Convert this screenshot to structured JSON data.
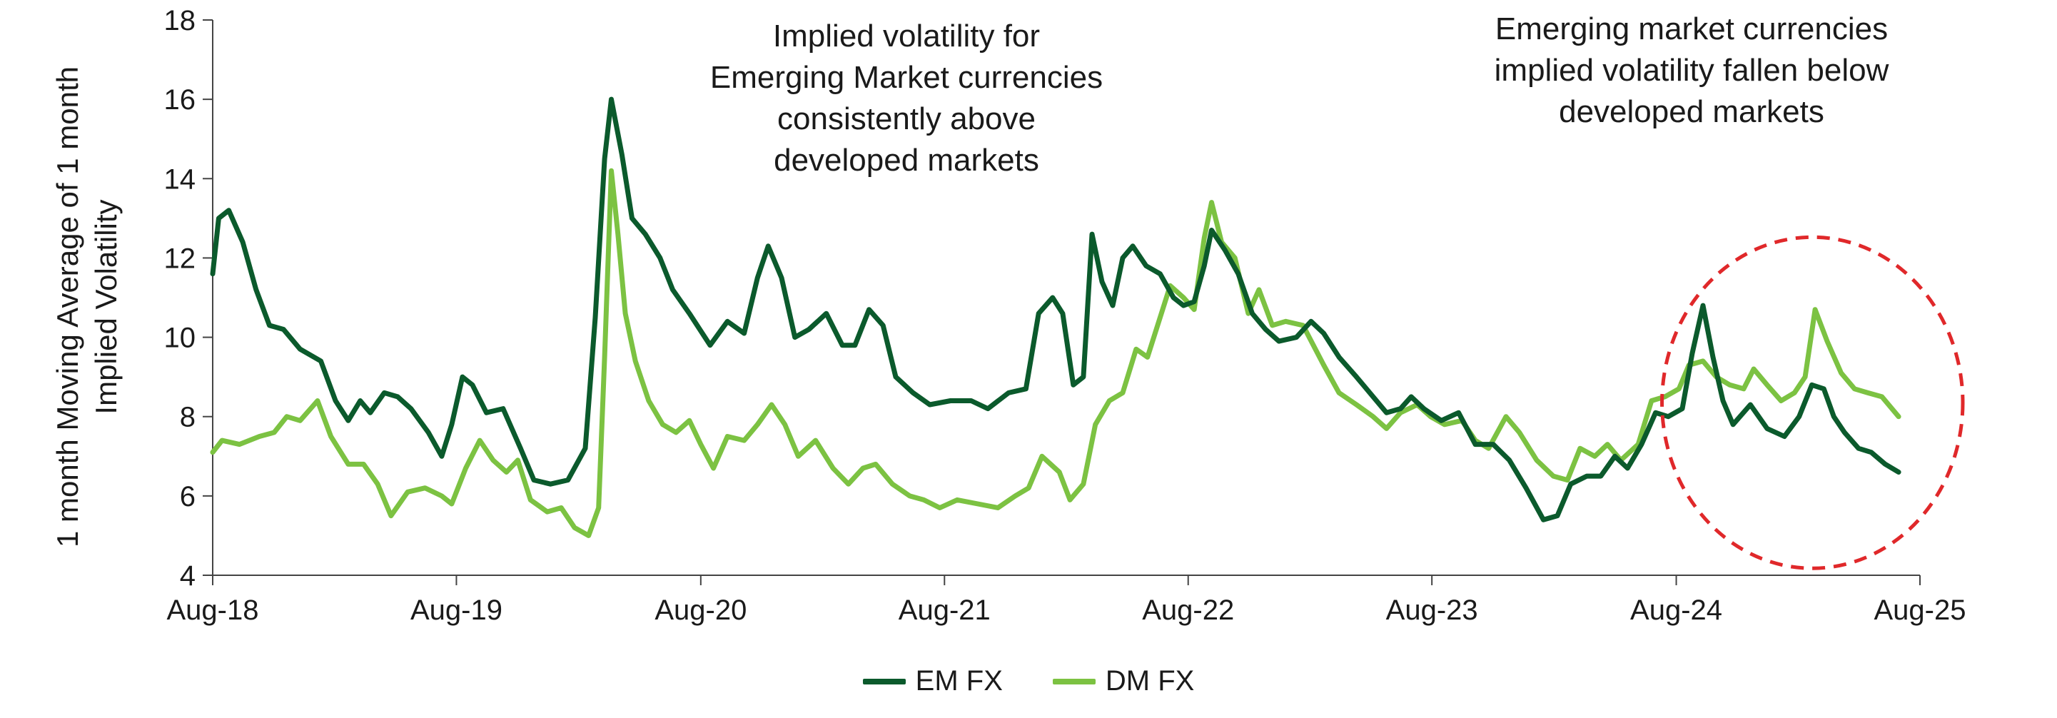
{
  "chart_data": {
    "type": "line",
    "title": "",
    "ylabel": "1 month Moving Average of 1 month\nImplied Volatility",
    "xlabel": "",
    "ylim": [
      4,
      18
    ],
    "yticks": [
      "4",
      "6",
      "8",
      "10",
      "12",
      "14",
      "16",
      "18"
    ],
    "xlim": [
      "2018-08-01",
      "2025-08-01"
    ],
    "xtick_labels": [
      "Aug-18",
      "Aug-19",
      "Aug-20",
      "Aug-21",
      "Aug-22",
      "Aug-23",
      "Aug-24",
      "Aug-25"
    ],
    "grid": false,
    "legend_position": "bottom",
    "series": [
      {
        "name": "EM FX",
        "color": "#0b5a2c",
        "points": [
          [
            "2018-08-01",
            11.6
          ],
          [
            "2018-08-10",
            13.0
          ],
          [
            "2018-08-25",
            13.2
          ],
          [
            "2018-09-15",
            12.4
          ],
          [
            "2018-10-05",
            11.2
          ],
          [
            "2018-10-25",
            10.3
          ],
          [
            "2018-11-15",
            10.2
          ],
          [
            "2018-12-10",
            9.7
          ],
          [
            "2019-01-10",
            9.4
          ],
          [
            "2019-02-01",
            8.4
          ],
          [
            "2019-02-20",
            7.9
          ],
          [
            "2019-03-10",
            8.4
          ],
          [
            "2019-03-25",
            8.1
          ],
          [
            "2019-04-15",
            8.6
          ],
          [
            "2019-05-05",
            8.5
          ],
          [
            "2019-05-25",
            8.2
          ],
          [
            "2019-06-20",
            7.6
          ],
          [
            "2019-07-10",
            7.0
          ],
          [
            "2019-07-25",
            7.8
          ],
          [
            "2019-08-10",
            9.0
          ],
          [
            "2019-08-25",
            8.8
          ],
          [
            "2019-09-15",
            8.1
          ],
          [
            "2019-10-10",
            8.2
          ],
          [
            "2019-11-05",
            7.2
          ],
          [
            "2019-11-25",
            6.4
          ],
          [
            "2019-12-20",
            6.3
          ],
          [
            "2020-01-15",
            6.4
          ],
          [
            "2020-02-10",
            7.2
          ],
          [
            "2020-02-25",
            10.5
          ],
          [
            "2020-03-10",
            14.5
          ],
          [
            "2020-03-20",
            16.0
          ],
          [
            "2020-04-05",
            14.6
          ],
          [
            "2020-04-20",
            13.0
          ],
          [
            "2020-05-10",
            12.6
          ],
          [
            "2020-06-01",
            12.0
          ],
          [
            "2020-06-20",
            11.2
          ],
          [
            "2020-07-15",
            10.6
          ],
          [
            "2020-08-15",
            9.8
          ],
          [
            "2020-09-10",
            10.4
          ],
          [
            "2020-10-05",
            10.1
          ],
          [
            "2020-10-25",
            11.5
          ],
          [
            "2020-11-10",
            12.3
          ],
          [
            "2020-11-30",
            11.5
          ],
          [
            "2020-12-20",
            10.0
          ],
          [
            "2021-01-10",
            10.2
          ],
          [
            "2021-02-05",
            10.6
          ],
          [
            "2021-03-01",
            9.8
          ],
          [
            "2021-03-20",
            9.8
          ],
          [
            "2021-04-10",
            10.7
          ],
          [
            "2021-05-01",
            10.3
          ],
          [
            "2021-05-20",
            9.0
          ],
          [
            "2021-06-15",
            8.6
          ],
          [
            "2021-07-10",
            8.3
          ],
          [
            "2021-08-10",
            8.4
          ],
          [
            "2021-09-10",
            8.4
          ],
          [
            "2021-10-05",
            8.2
          ],
          [
            "2021-11-05",
            8.6
          ],
          [
            "2021-12-01",
            8.7
          ],
          [
            "2021-12-20",
            10.6
          ],
          [
            "2022-01-10",
            11.0
          ],
          [
            "2022-01-25",
            10.6
          ],
          [
            "2022-02-10",
            8.8
          ],
          [
            "2022-02-25",
            9.0
          ],
          [
            "2022-03-10",
            12.6
          ],
          [
            "2022-03-25",
            11.4
          ],
          [
            "2022-04-10",
            10.8
          ],
          [
            "2022-04-25",
            12.0
          ],
          [
            "2022-05-10",
            12.3
          ],
          [
            "2022-05-30",
            11.8
          ],
          [
            "2022-06-20",
            11.6
          ],
          [
            "2022-07-10",
            11.0
          ],
          [
            "2022-07-25",
            10.8
          ],
          [
            "2022-08-10",
            10.9
          ],
          [
            "2022-08-25",
            11.8
          ],
          [
            "2022-09-05",
            12.7
          ],
          [
            "2022-09-25",
            12.2
          ],
          [
            "2022-10-15",
            11.6
          ],
          [
            "2022-11-05",
            10.6
          ],
          [
            "2022-11-25",
            10.2
          ],
          [
            "2022-12-15",
            9.9
          ],
          [
            "2023-01-10",
            10.0
          ],
          [
            "2023-02-01",
            10.4
          ],
          [
            "2023-02-20",
            10.1
          ],
          [
            "2023-03-15",
            9.5
          ],
          [
            "2023-04-10",
            9.0
          ],
          [
            "2023-05-05",
            8.5
          ],
          [
            "2023-05-25",
            8.1
          ],
          [
            "2023-06-15",
            8.2
          ],
          [
            "2023-07-01",
            8.5
          ],
          [
            "2023-07-20",
            8.2
          ],
          [
            "2023-08-15",
            7.9
          ],
          [
            "2023-09-10",
            8.1
          ],
          [
            "2023-10-05",
            7.3
          ],
          [
            "2023-11-01",
            7.3
          ],
          [
            "2023-11-25",
            6.9
          ],
          [
            "2023-12-20",
            6.2
          ],
          [
            "2024-01-15",
            5.4
          ],
          [
            "2024-02-05",
            5.5
          ],
          [
            "2024-02-25",
            6.3
          ],
          [
            "2024-03-20",
            6.5
          ],
          [
            "2024-04-10",
            6.5
          ],
          [
            "2024-05-01",
            7.0
          ],
          [
            "2024-05-20",
            6.7
          ],
          [
            "2024-06-10",
            7.3
          ],
          [
            "2024-07-01",
            8.1
          ],
          [
            "2024-07-20",
            8.0
          ],
          [
            "2024-08-10",
            8.2
          ],
          [
            "2024-08-25",
            9.6
          ],
          [
            "2024-09-10",
            10.8
          ],
          [
            "2024-09-25",
            9.5
          ],
          [
            "2024-10-10",
            8.4
          ],
          [
            "2024-10-25",
            7.8
          ],
          [
            "2024-11-20",
            8.3
          ],
          [
            "2024-12-15",
            7.7
          ],
          [
            "2025-01-10",
            7.5
          ],
          [
            "2025-02-01",
            8.0
          ],
          [
            "2025-02-20",
            8.8
          ],
          [
            "2025-03-10",
            8.7
          ],
          [
            "2025-03-25",
            8.0
          ],
          [
            "2025-04-10",
            7.6
          ],
          [
            "2025-05-01",
            7.2
          ],
          [
            "2025-05-20",
            7.1
          ],
          [
            "2025-06-10",
            6.8
          ],
          [
            "2025-06-30",
            6.6
          ]
        ]
      },
      {
        "name": "DM FX",
        "color": "#7cc242",
        "points": [
          [
            "2018-08-01",
            7.1
          ],
          [
            "2018-08-15",
            7.4
          ],
          [
            "2018-09-10",
            7.3
          ],
          [
            "2018-10-10",
            7.5
          ],
          [
            "2018-11-01",
            7.6
          ],
          [
            "2018-11-20",
            8.0
          ],
          [
            "2018-12-10",
            7.9
          ],
          [
            "2019-01-05",
            8.4
          ],
          [
            "2019-01-25",
            7.5
          ],
          [
            "2019-02-20",
            6.8
          ],
          [
            "2019-03-15",
            6.8
          ],
          [
            "2019-04-05",
            6.3
          ],
          [
            "2019-04-25",
            5.5
          ],
          [
            "2019-05-20",
            6.1
          ],
          [
            "2019-06-15",
            6.2
          ],
          [
            "2019-07-10",
            6.0
          ],
          [
            "2019-07-25",
            5.8
          ],
          [
            "2019-08-15",
            6.7
          ],
          [
            "2019-09-05",
            7.4
          ],
          [
            "2019-09-25",
            6.9
          ],
          [
            "2019-10-15",
            6.6
          ],
          [
            "2019-11-01",
            6.9
          ],
          [
            "2019-11-20",
            5.9
          ],
          [
            "2019-12-15",
            5.6
          ],
          [
            "2020-01-05",
            5.7
          ],
          [
            "2020-01-25",
            5.2
          ],
          [
            "2020-02-15",
            5.0
          ],
          [
            "2020-03-01",
            5.7
          ],
          [
            "2020-03-10",
            9.5
          ],
          [
            "2020-03-20",
            14.2
          ],
          [
            "2020-03-30",
            12.6
          ],
          [
            "2020-04-10",
            10.6
          ],
          [
            "2020-04-25",
            9.4
          ],
          [
            "2020-05-15",
            8.4
          ],
          [
            "2020-06-05",
            7.8
          ],
          [
            "2020-06-25",
            7.6
          ],
          [
            "2020-07-15",
            7.9
          ],
          [
            "2020-08-01",
            7.3
          ],
          [
            "2020-08-20",
            6.7
          ],
          [
            "2020-09-10",
            7.5
          ],
          [
            "2020-10-05",
            7.4
          ],
          [
            "2020-10-25",
            7.8
          ],
          [
            "2020-11-15",
            8.3
          ],
          [
            "2020-12-05",
            7.8
          ],
          [
            "2020-12-25",
            7.0
          ],
          [
            "2021-01-20",
            7.4
          ],
          [
            "2021-02-15",
            6.7
          ],
          [
            "2021-03-10",
            6.3
          ],
          [
            "2021-04-01",
            6.7
          ],
          [
            "2021-04-20",
            6.8
          ],
          [
            "2021-05-15",
            6.3
          ],
          [
            "2021-06-10",
            6.0
          ],
          [
            "2021-07-01",
            5.9
          ],
          [
            "2021-07-25",
            5.7
          ],
          [
            "2021-08-20",
            5.9
          ],
          [
            "2021-09-20",
            5.8
          ],
          [
            "2021-10-20",
            5.7
          ],
          [
            "2021-11-15",
            6.0
          ],
          [
            "2021-12-05",
            6.2
          ],
          [
            "2021-12-25",
            7.0
          ],
          [
            "2022-01-20",
            6.6
          ],
          [
            "2022-02-05",
            5.9
          ],
          [
            "2022-02-25",
            6.3
          ],
          [
            "2022-03-15",
            7.8
          ],
          [
            "2022-04-05",
            8.4
          ],
          [
            "2022-04-25",
            8.6
          ],
          [
            "2022-05-15",
            9.7
          ],
          [
            "2022-06-01",
            9.5
          ],
          [
            "2022-06-20",
            10.5
          ],
          [
            "2022-07-05",
            11.3
          ],
          [
            "2022-07-25",
            11.0
          ],
          [
            "2022-08-10",
            10.7
          ],
          [
            "2022-08-25",
            12.5
          ],
          [
            "2022-09-05",
            13.4
          ],
          [
            "2022-09-20",
            12.4
          ],
          [
            "2022-10-10",
            12.0
          ],
          [
            "2022-10-30",
            10.6
          ],
          [
            "2022-11-15",
            11.2
          ],
          [
            "2022-12-05",
            10.3
          ],
          [
            "2022-12-25",
            10.4
          ],
          [
            "2023-01-20",
            10.3
          ],
          [
            "2023-02-20",
            9.3
          ],
          [
            "2023-03-15",
            8.6
          ],
          [
            "2023-04-10",
            8.3
          ],
          [
            "2023-05-05",
            8.0
          ],
          [
            "2023-05-25",
            7.7
          ],
          [
            "2023-06-15",
            8.1
          ],
          [
            "2023-07-10",
            8.3
          ],
          [
            "2023-07-30",
            8.0
          ],
          [
            "2023-08-20",
            7.8
          ],
          [
            "2023-09-15",
            7.9
          ],
          [
            "2023-10-05",
            7.4
          ],
          [
            "2023-10-25",
            7.2
          ],
          [
            "2023-11-20",
            8.0
          ],
          [
            "2023-12-10",
            7.6
          ],
          [
            "2024-01-05",
            6.9
          ],
          [
            "2024-01-30",
            6.5
          ],
          [
            "2024-02-20",
            6.4
          ],
          [
            "2024-03-10",
            7.2
          ],
          [
            "2024-04-01",
            7.0
          ],
          [
            "2024-04-20",
            7.3
          ],
          [
            "2024-05-10",
            6.9
          ],
          [
            "2024-06-05",
            7.3
          ],
          [
            "2024-06-25",
            8.4
          ],
          [
            "2024-07-15",
            8.5
          ],
          [
            "2024-08-05",
            8.7
          ],
          [
            "2024-08-20",
            9.3
          ],
          [
            "2024-09-10",
            9.4
          ],
          [
            "2024-09-30",
            9.0
          ],
          [
            "2024-10-20",
            8.8
          ],
          [
            "2024-11-10",
            8.7
          ],
          [
            "2024-11-25",
            9.2
          ],
          [
            "2024-12-15",
            8.8
          ],
          [
            "2025-01-05",
            8.4
          ],
          [
            "2025-01-25",
            8.6
          ],
          [
            "2025-02-10",
            9.0
          ],
          [
            "2025-02-25",
            10.7
          ],
          [
            "2025-03-15",
            9.9
          ],
          [
            "2025-04-05",
            9.1
          ],
          [
            "2025-04-25",
            8.7
          ],
          [
            "2025-05-15",
            8.6
          ],
          [
            "2025-06-05",
            8.5
          ],
          [
            "2025-06-30",
            8.0
          ]
        ]
      }
    ],
    "annotations": [
      {
        "text": "Implied volatility for\nEmerging Market currencies\nconsistently above\ndeveloped markets"
      },
      {
        "text": "Emerging market currencies\nimplied volatility fallen below\ndeveloped markets"
      }
    ],
    "highlight": {
      "shape": "dashed-ellipse",
      "color": "#e0282a",
      "covers": [
        "2024-08-01",
        "2025-08-01"
      ]
    }
  }
}
